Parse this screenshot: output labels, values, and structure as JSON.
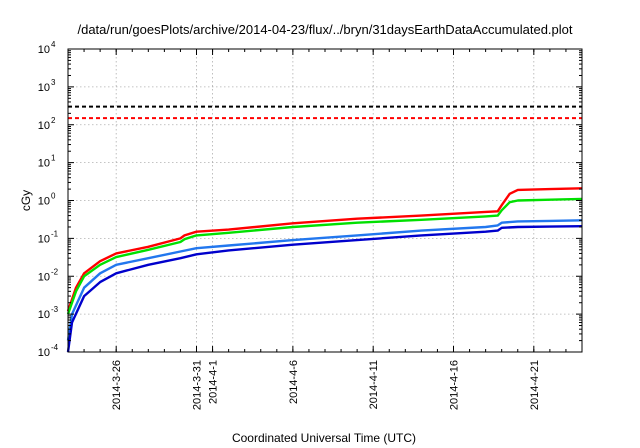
{
  "chart_data": {
    "type": "line",
    "title": "/data/run/goesPlots/archive/2014-04-23/flux/../bryn/31daysEarthDataAccumulated.plot",
    "xlabel": "Coordinated Universal Time (UTC)",
    "ylabel": "cGy",
    "y_scale": "log",
    "ylim": [
      0.0001,
      10000
    ],
    "y_ticks": [
      {
        "value": 0.0001,
        "base": "10",
        "exp": "-4"
      },
      {
        "value": 0.001,
        "base": "10",
        "exp": "-3"
      },
      {
        "value": 0.01,
        "base": "10",
        "exp": "-2"
      },
      {
        "value": 0.1,
        "base": "10",
        "exp": "-1"
      },
      {
        "value": 1,
        "base": "10",
        "exp": "0"
      },
      {
        "value": 10,
        "base": "10",
        "exp": "1"
      },
      {
        "value": 100,
        "base": "10",
        "exp": "2"
      },
      {
        "value": 1000,
        "base": "10",
        "exp": "3"
      },
      {
        "value": 10000,
        "base": "10",
        "exp": "4"
      }
    ],
    "xlim": [
      "2014-03-23",
      "2014-04-24"
    ],
    "x_ticks": [
      {
        "date": "2014-03-26",
        "label": "2014-3-26"
      },
      {
        "date": "2014-03-31",
        "label": "2014-3-31"
      },
      {
        "date": "2014-04-01",
        "label": "2014-4-1"
      },
      {
        "date": "2014-04-06",
        "label": "2014-4-6"
      },
      {
        "date": "2014-04-11",
        "label": "2014-4-11"
      },
      {
        "date": "2014-04-16",
        "label": "2014-4-16"
      },
      {
        "date": "2014-04-21",
        "label": "2014-4-21"
      }
    ],
    "grid": true,
    "thresholds": [
      {
        "value": 300,
        "color": "#000000"
      },
      {
        "value": 150,
        "color": "#ff0000"
      }
    ],
    "series": [
      {
        "color": "#ff0000",
        "x": [
          "2014-03-23",
          "2014-03-23 12:00",
          "2014-03-24",
          "2014-03-25",
          "2014-03-26",
          "2014-03-28",
          "2014-03-30",
          "2014-03-30 06:00",
          "2014-03-31",
          "2014-04-02",
          "2014-04-06",
          "2014-04-10",
          "2014-04-14",
          "2014-04-18",
          "2014-04-18 18:00",
          "2014-04-19",
          "2014-04-19 12:00",
          "2014-04-20",
          "2014-04-22",
          "2014-04-24"
        ],
        "y": [
          0.0012,
          0.005,
          0.012,
          0.025,
          0.04,
          0.06,
          0.1,
          0.12,
          0.15,
          0.17,
          0.25,
          0.33,
          0.4,
          0.5,
          0.52,
          0.75,
          1.5,
          1.9,
          2.0,
          2.1
        ]
      },
      {
        "color": "#00e000",
        "x": [
          "2014-03-23",
          "2014-03-23 12:00",
          "2014-03-24",
          "2014-03-25",
          "2014-03-26",
          "2014-03-28",
          "2014-03-30",
          "2014-03-30 06:00",
          "2014-03-31",
          "2014-04-02",
          "2014-04-06",
          "2014-04-10",
          "2014-04-14",
          "2014-04-18",
          "2014-04-18 18:00",
          "2014-04-19",
          "2014-04-19 12:00",
          "2014-04-20",
          "2014-04-22",
          "2014-04-24"
        ],
        "y": [
          0.001,
          0.004,
          0.01,
          0.02,
          0.032,
          0.05,
          0.08,
          0.095,
          0.12,
          0.14,
          0.2,
          0.26,
          0.31,
          0.38,
          0.4,
          0.55,
          0.9,
          1.0,
          1.05,
          1.1
        ]
      },
      {
        "color": "#2277ee",
        "x": [
          "2014-03-23",
          "2014-03-23 06:00",
          "2014-03-24",
          "2014-03-25",
          "2014-03-26",
          "2014-03-28",
          "2014-03-30",
          "2014-03-31",
          "2014-04-02",
          "2014-04-06",
          "2014-04-10",
          "2014-04-14",
          "2014-04-18",
          "2014-04-18 18:00",
          "2014-04-19",
          "2014-04-20",
          "2014-04-22",
          "2014-04-24"
        ],
        "y": [
          0.0002,
          0.001,
          0.005,
          0.012,
          0.02,
          0.03,
          0.045,
          0.055,
          0.065,
          0.09,
          0.12,
          0.16,
          0.2,
          0.22,
          0.26,
          0.28,
          0.29,
          0.3
        ]
      },
      {
        "color": "#0000cc",
        "x": [
          "2014-03-23",
          "2014-03-23 06:00",
          "2014-03-24",
          "2014-03-25",
          "2014-03-26",
          "2014-03-28",
          "2014-03-30",
          "2014-03-31",
          "2014-04-02",
          "2014-04-06",
          "2014-04-10",
          "2014-04-14",
          "2014-04-18",
          "2014-04-18 18:00",
          "2014-04-19",
          "2014-04-20",
          "2014-04-22",
          "2014-04-24"
        ],
        "y": [
          0.0001,
          0.0006,
          0.003,
          0.007,
          0.012,
          0.02,
          0.03,
          0.038,
          0.048,
          0.068,
          0.09,
          0.12,
          0.15,
          0.16,
          0.19,
          0.2,
          0.205,
          0.21
        ]
      }
    ]
  }
}
